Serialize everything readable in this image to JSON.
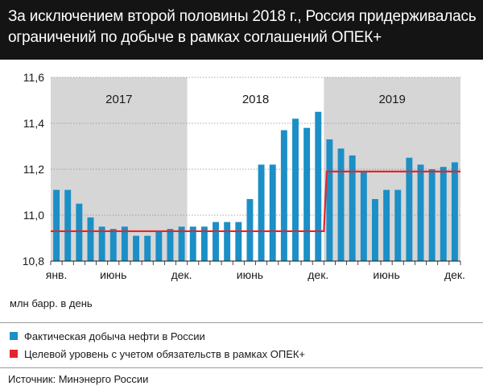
{
  "header": {
    "title_line1": "За исключением второй половины 2018 г., Россия придерживалась",
    "title_line2": "ограничений по добыче в рамках соглашений ОПЕК+"
  },
  "colors": {
    "bar": "#1b8fc6",
    "target_line": "#e3262b",
    "shade": "#d6d6d6",
    "header_bg": "#141414"
  },
  "chart_data": {
    "type": "bar",
    "unit_label": "млн барр. в день",
    "ylim": [
      10.8,
      11.6
    ],
    "yticks": [
      "10,8",
      "11,0",
      "11,2",
      "11,4",
      "11,6"
    ],
    "ytick_values": [
      10.8,
      11.0,
      11.2,
      11.4,
      11.6
    ],
    "year_labels": [
      "2017",
      "2018",
      "2019"
    ],
    "x_tick_labels": [
      {
        "label": "янв.",
        "index": 0
      },
      {
        "label": "июнь",
        "index": 5
      },
      {
        "label": "дек.",
        "index": 11
      },
      {
        "label": "июнь",
        "index": 17
      },
      {
        "label": "дек.",
        "index": 23
      },
      {
        "label": "июнь",
        "index": 29
      },
      {
        "label": "дек.",
        "index": 35
      }
    ],
    "series": [
      {
        "name": "Фактическая добыча нефти в России",
        "type": "bar",
        "values": [
          11.11,
          11.11,
          11.05,
          10.99,
          10.95,
          10.94,
          10.95,
          10.91,
          10.91,
          10.93,
          10.94,
          10.95,
          10.95,
          10.95,
          10.97,
          10.97,
          10.97,
          11.07,
          11.22,
          11.22,
          11.37,
          11.42,
          11.38,
          11.45,
          11.33,
          11.29,
          11.26,
          11.19,
          11.07,
          11.11,
          11.11,
          11.25,
          11.22,
          11.2,
          11.21,
          11.23
        ]
      },
      {
        "name": "Целевой уровень с учетом обязательств в рамках ОПЕК+",
        "type": "line",
        "values": [
          10.93,
          10.93,
          10.93,
          10.93,
          10.93,
          10.93,
          10.93,
          10.93,
          10.93,
          10.93,
          10.93,
          10.93,
          10.93,
          10.93,
          10.93,
          10.93,
          10.93,
          10.93,
          10.93,
          10.93,
          10.93,
          10.93,
          10.93,
          10.93,
          11.19,
          11.19,
          11.19,
          11.19,
          11.19,
          11.19,
          11.19,
          11.19,
          11.19,
          11.19,
          11.19,
          11.19
        ]
      }
    ]
  },
  "legend": {
    "items": [
      "Фактическая добыча нефти в России",
      "Целевой уровень с учетом обязательств в рамках ОПЕК+"
    ]
  },
  "footer": {
    "source": "Источник: Минэнерго России"
  }
}
